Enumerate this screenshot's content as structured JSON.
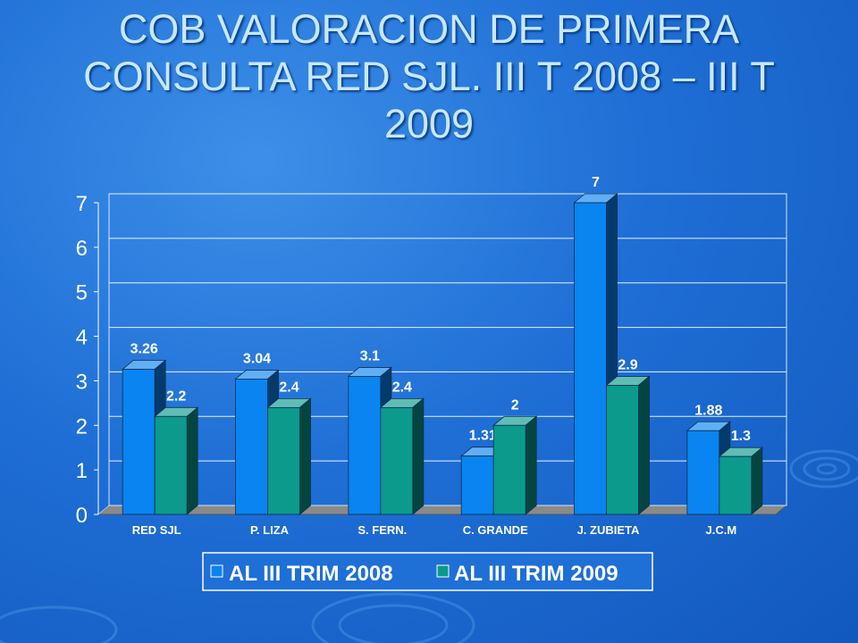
{
  "slide": {
    "title": "COB VALORACION DE PRIMERA CONSULTA RED SJL. III T 2008 – III T 2009"
  },
  "colors": {
    "series_2008": "#0a84f0",
    "series_2009": "#0b9a8c",
    "title_text": "#c8e8ff",
    "axis_text": "#ffffff",
    "data_label": "#ffffff",
    "legend_background": "#1e6fd6"
  },
  "chart_data": {
    "type": "bar",
    "title": "",
    "xlabel": "",
    "ylabel": "",
    "categories": [
      "RED SJL",
      "P. LIZA",
      "S. FERN.",
      "C. GRANDE",
      "J. ZUBIETA",
      "J.C.M"
    ],
    "series": [
      {
        "name": "AL III TRIM 2008",
        "values": [
          3.26,
          3.04,
          3.1,
          1.31,
          7,
          1.88
        ],
        "labels": [
          "3.26",
          "3.04",
          "3.1",
          "1.31",
          "7",
          "1.88"
        ]
      },
      {
        "name": "AL III TRIM 2009",
        "values": [
          2.2,
          2.4,
          2.4,
          2,
          2.9,
          1.3
        ],
        "labels": [
          "2.2",
          "2.4",
          "2.4",
          "2",
          "2.9",
          "1.3"
        ]
      }
    ],
    "ylim": [
      0,
      7
    ],
    "yticks": [
      "0",
      "1",
      "2",
      "3",
      "4",
      "5",
      "6",
      "7"
    ],
    "grid": true,
    "three_d": true,
    "legend_position": "bottom"
  }
}
